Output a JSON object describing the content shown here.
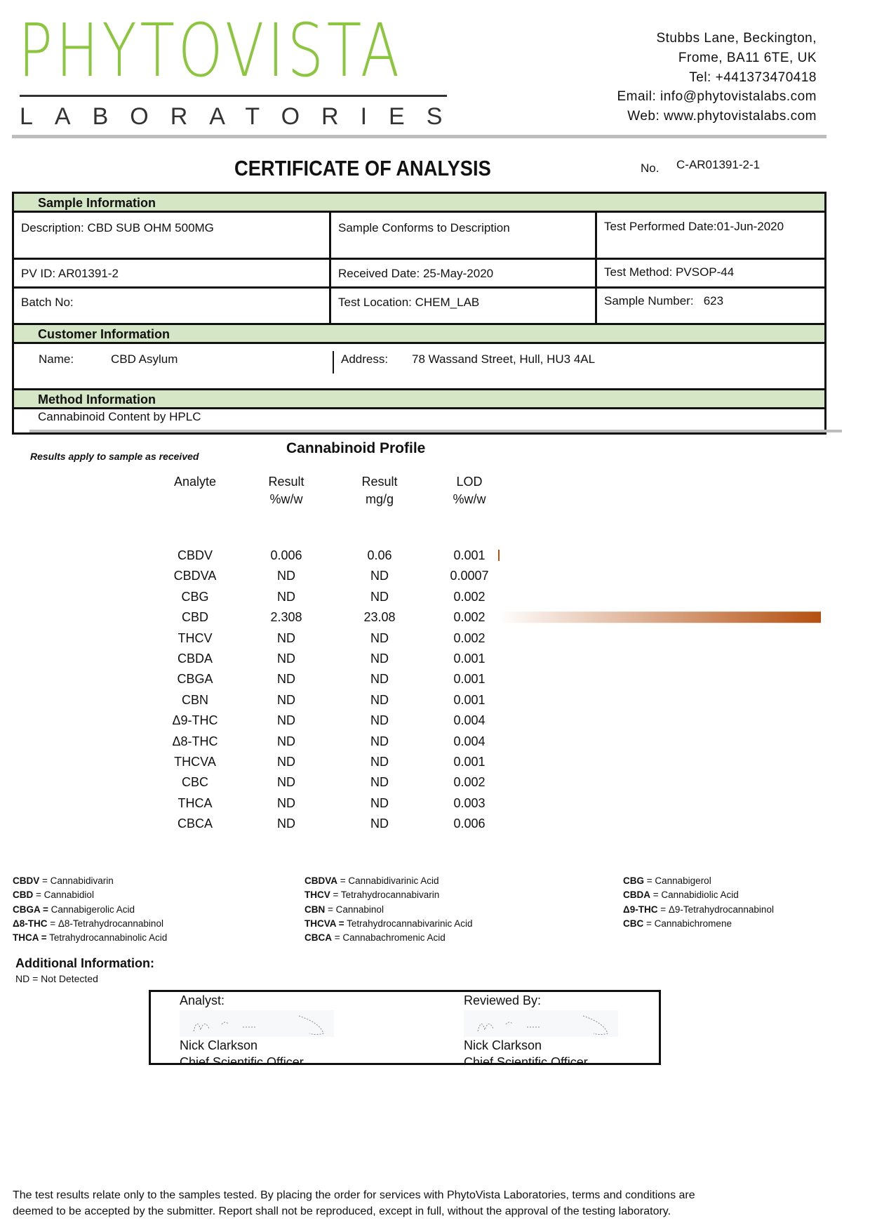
{
  "header": {
    "logo_text": "PHYTOVISTA",
    "logo_subtext": "LABORATORIES",
    "address_lines": [
      "Stubbs Lane, Beckington,",
      "Frome, BA11 6TE, UK",
      "Tel: +441373470418",
      "Email: info@phytovistalabs.com",
      "Web: www.phytovistalabs.com"
    ],
    "brand_color": "#8cc63f"
  },
  "certificate": {
    "title": "CERTIFICATE OF ANALYSIS",
    "no_label": "No.",
    "no_value": "C-AR01391-2-1"
  },
  "sample_info": {
    "heading": "Sample Information",
    "description": "Description: CBD SUB OHM 500MG",
    "conforms": "Sample Conforms to Description",
    "test_date": "Test Performed Date:01-Jun-2020",
    "pv_id": "PV ID: AR01391-2",
    "received": "Received Date: 25-May-2020",
    "test_method": "Test Method: PVSOP-44",
    "batch": "Batch No:",
    "location": "Test Location: CHEM_LAB",
    "sample_number": "Sample Number:   623"
  },
  "customer_info": {
    "heading": "Customer Information",
    "name_label": "Name:",
    "name": "CBD Asylum",
    "address_label": "Address:",
    "address": "78 Wassand Street, Hull, HU3 4AL"
  },
  "method_info": {
    "heading": "Method Information",
    "method": "Cannabinoid Content by HPLC"
  },
  "profile": {
    "note": "Results apply to sample as received",
    "title": "Cannabinoid Profile",
    "headers": [
      [
        "Analyte",
        ""
      ],
      [
        "Result",
        "%w/w"
      ],
      [
        "Result",
        "mg/g"
      ],
      [
        "LOD",
        "%w/w"
      ]
    ],
    "bar_color": "#b5500f",
    "rows": [
      {
        "analyte": "CBDV",
        "pct": "0.006",
        "mg": "0.06",
        "lod": "0.001"
      },
      {
        "analyte": "CBDVA",
        "pct": "ND",
        "mg": "ND",
        "lod": "0.0007"
      },
      {
        "analyte": "CBG",
        "pct": "ND",
        "mg": "ND",
        "lod": "0.002"
      },
      {
        "analyte": "CBD",
        "pct": "2.308",
        "mg": "23.08",
        "lod": "0.002"
      },
      {
        "analyte": "THCV",
        "pct": "ND",
        "mg": "ND",
        "lod": "0.002"
      },
      {
        "analyte": "CBDA",
        "pct": "ND",
        "mg": "ND",
        "lod": "0.001"
      },
      {
        "analyte": "CBGA",
        "pct": "ND",
        "mg": "ND",
        "lod": "0.001"
      },
      {
        "analyte": "CBN",
        "pct": "ND",
        "mg": "ND",
        "lod": "0.001"
      },
      {
        "analyte": "Δ9-THC",
        "pct": "ND",
        "mg": "ND",
        "lod": "0.004"
      },
      {
        "analyte": "Δ8-THC",
        "pct": "ND",
        "mg": "ND",
        "lod": "0.004"
      },
      {
        "analyte": "THCVA",
        "pct": "ND",
        "mg": "ND",
        "lod": "0.001"
      },
      {
        "analyte": "CBC",
        "pct": "ND",
        "mg": "ND",
        "lod": "0.002"
      },
      {
        "analyte": "THCA",
        "pct": "ND",
        "mg": "ND",
        "lod": "0.003"
      },
      {
        "analyte": "CBCA",
        "pct": "ND",
        "mg": "ND",
        "lod": "0.006"
      }
    ]
  },
  "legend": [
    [
      [
        "CBDV",
        " = Cannabidivarin"
      ],
      [
        "CBD",
        " = Cannabidiol"
      ],
      [
        "CBGA =",
        " Cannabigerolic Acid"
      ],
      [
        "Δ8-THC",
        " = Δ8-Tetrahydrocannabinol"
      ],
      [
        "THCA =",
        " Tetrahydrocannabinolic Acid"
      ]
    ],
    [
      [
        "CBDVA",
        " = Cannabidivarinic Acid"
      ],
      [
        "THCV",
        " = Tetrahydrocannabivarin"
      ],
      [
        "CBN",
        " = Cannabinol"
      ],
      [
        "THCVA =",
        " Tetrahydrocannabivarinic Acid"
      ],
      [
        "CBCA",
        " = Cannabachromenic Acid"
      ]
    ],
    [
      [
        "CBG",
        " = Cannabigerol"
      ],
      [
        "CBDA",
        " = Cannabidiolic Acid"
      ],
      [
        "Δ9-THC",
        " = Δ9-Tetrahydrocannabinol"
      ],
      [
        "CBC",
        " = Cannabichromene"
      ]
    ]
  ],
  "additional": {
    "heading": "Additional Information:",
    "note": "ND = Not Detected"
  },
  "signatures": {
    "analyst": {
      "label": "Analyst:",
      "name": "Nick Clarkson",
      "title": "Chief Scientific Officer"
    },
    "reviewer": {
      "label": "Reviewed By:",
      "name": "Nick Clarkson",
      "title": "Chief Scientific Officer"
    }
  },
  "footer": [
    "The test results relate only to the samples tested.  By placing the order for services with PhytoVista Laboratories, terms and conditions are",
    "deemed to be accepted by the submitter. Report shall not be reproduced, except in full, without the approval of the testing laboratory."
  ]
}
